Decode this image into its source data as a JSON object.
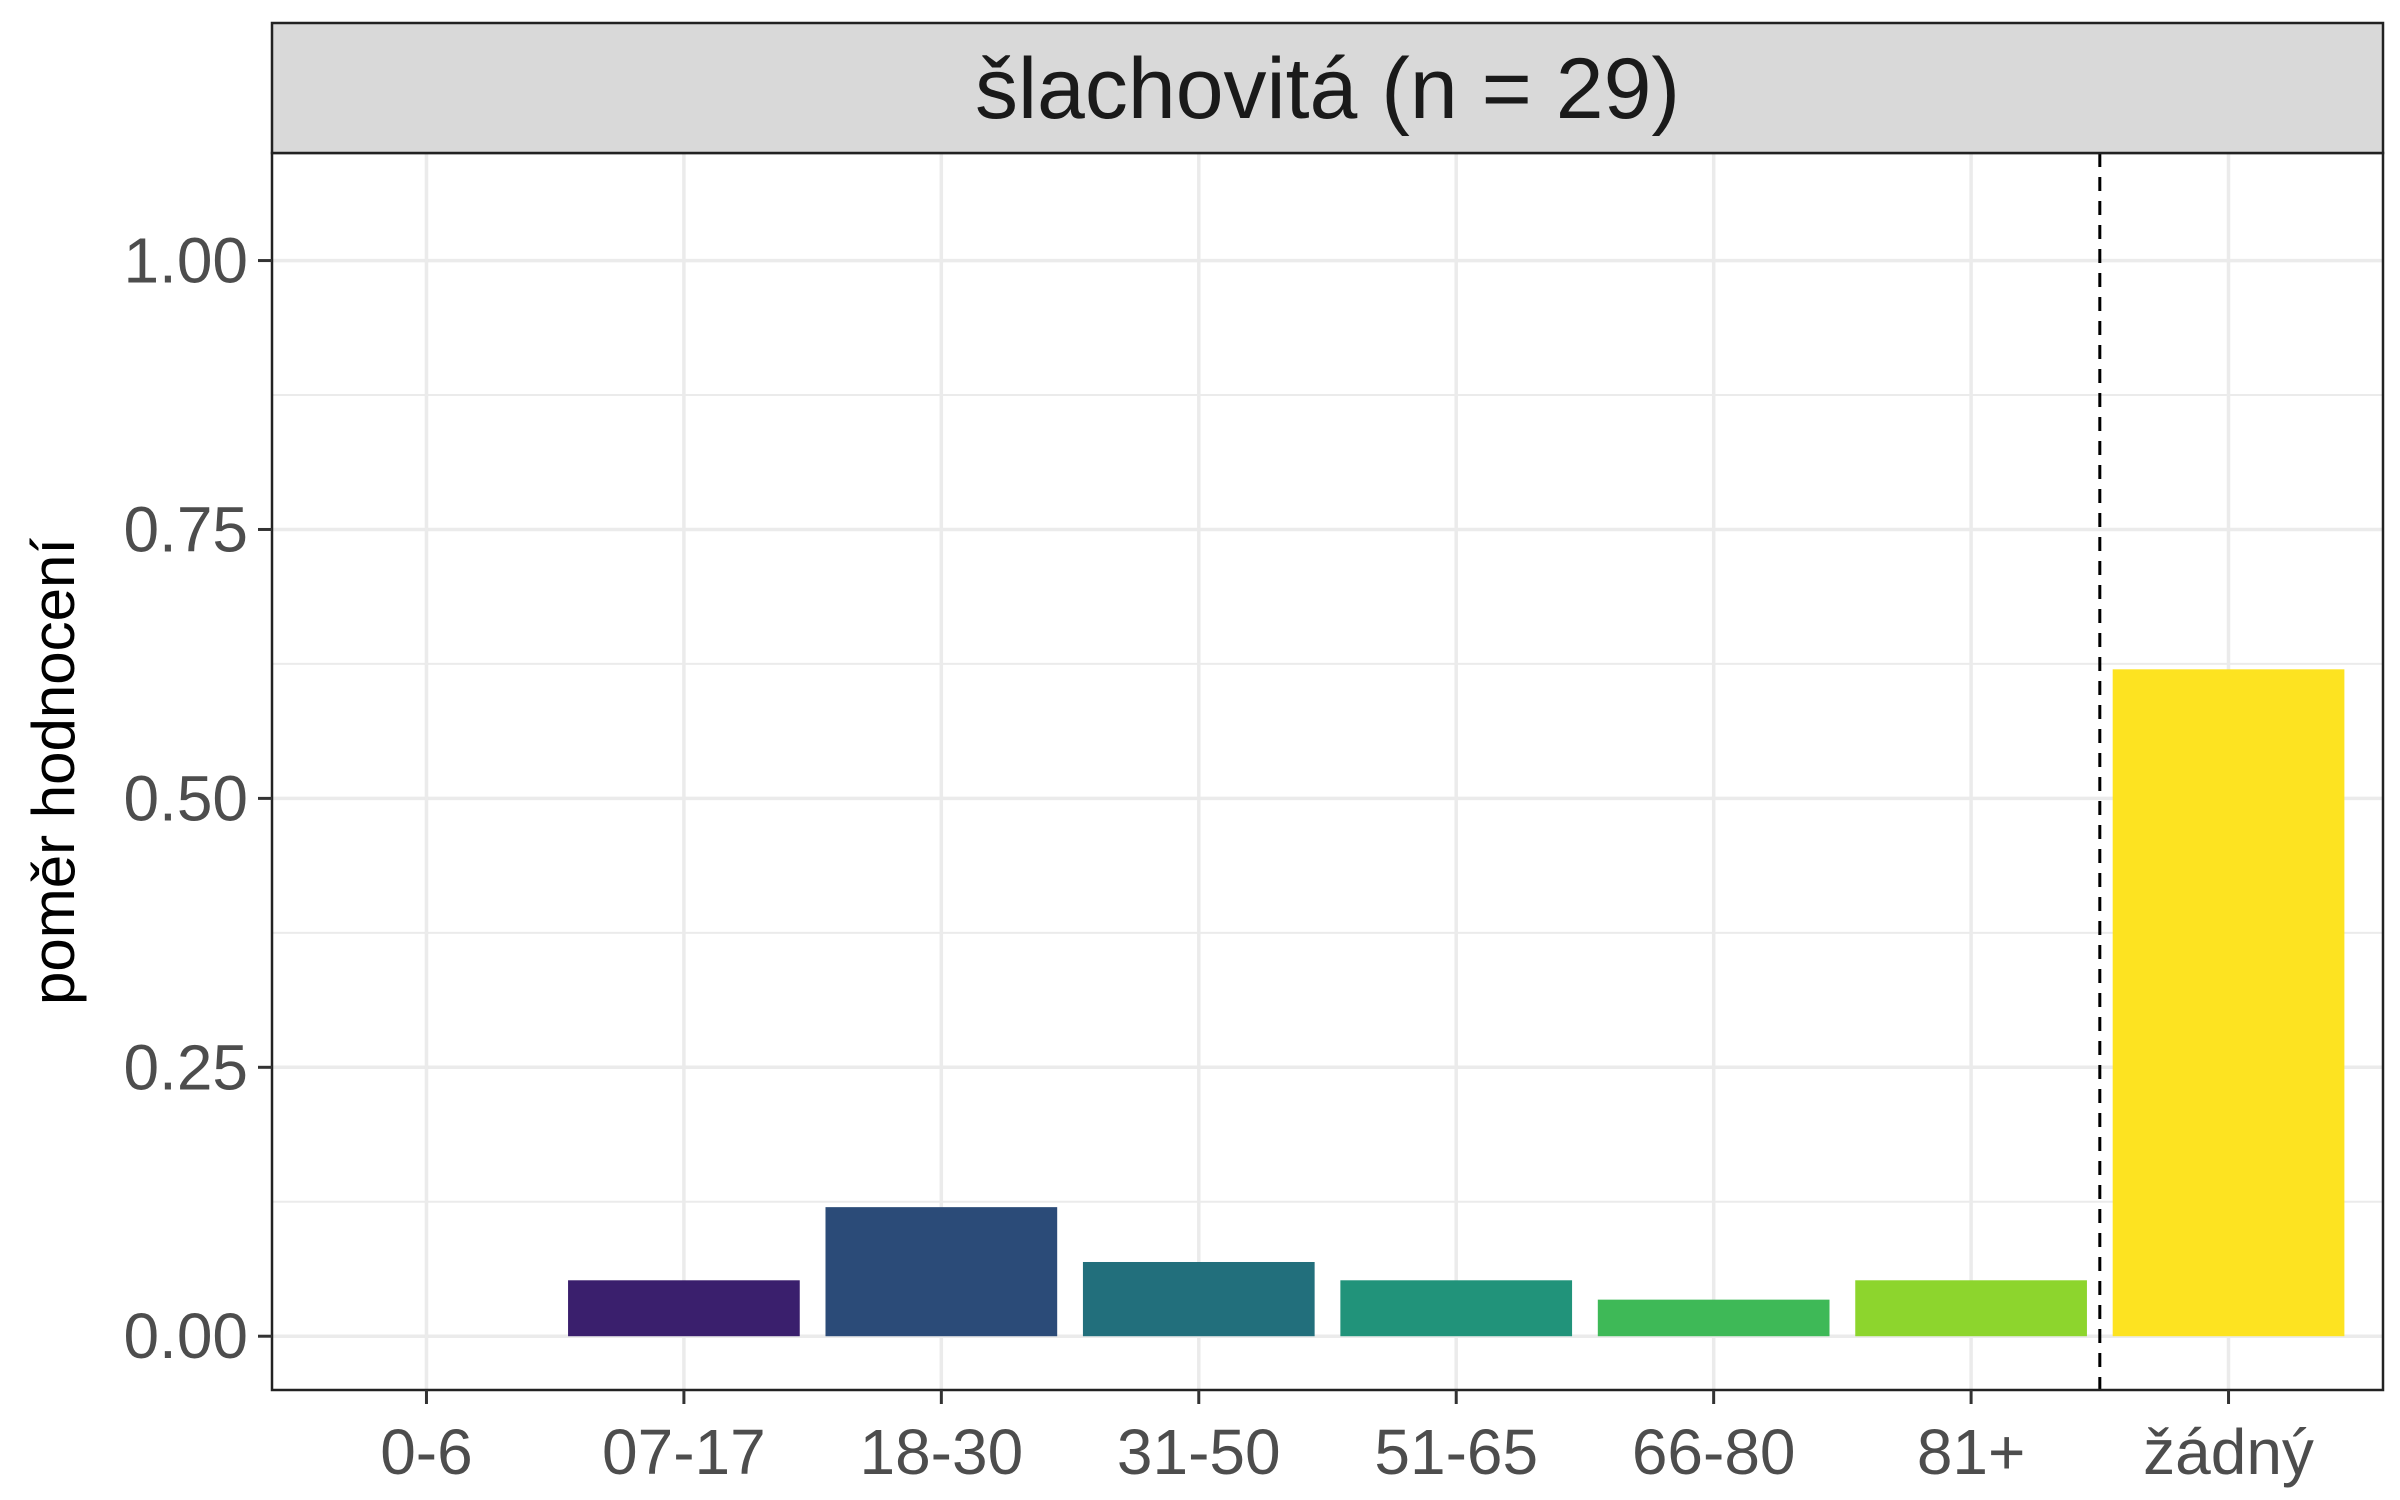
{
  "chart_data": {
    "type": "bar",
    "title": "šlachovitá (n = 29)",
    "xlabel": "",
    "ylabel": "poměr hodnocení",
    "categories": [
      "0-6",
      "07-17",
      "18-30",
      "31-50",
      "51-65",
      "66-80",
      "81+",
      "žádný"
    ],
    "values": [
      0.0,
      0.052,
      0.12,
      0.069,
      0.052,
      0.034,
      0.052,
      0.62
    ],
    "colors": [
      "#440154",
      "#3a1f6d",
      "#2b4b78",
      "#226f7c",
      "#21937a",
      "#3eb957",
      "#8dd52d",
      "#fde321"
    ],
    "ylim": [
      -0.05,
      1.1
    ],
    "yticks": [
      "0.00",
      "0.25",
      "0.50",
      "0.75",
      "1.00"
    ],
    "ytick_values": [
      0.0,
      0.25,
      0.5,
      0.75,
      1.0
    ],
    "separator_after_category": "81+",
    "grid": true,
    "facet_strip_color": "#d9d9d9",
    "grid_color": "#ebebeb"
  }
}
